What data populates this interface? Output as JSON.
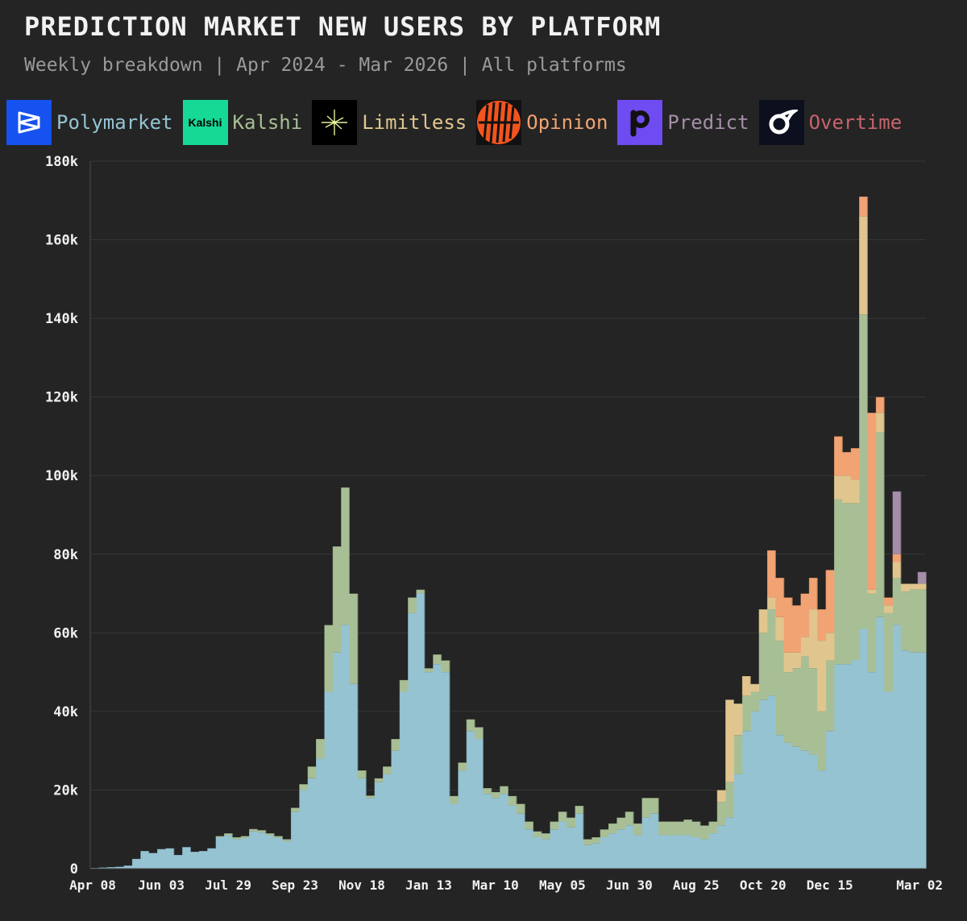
{
  "title": "PREDICTION MARKET NEW USERS BY PLATFORM",
  "subtitle": "Weekly breakdown | Apr 2024 - Mar 2026 | All platforms",
  "legend": [
    {
      "name": "Polymarket",
      "color": "#95c3d2",
      "icon": "polymarket-logo-icon",
      "icon_bg": "#1652f0"
    },
    {
      "name": "Kalshi",
      "color": "#a8bf96",
      "icon": "kalshi-logo-icon",
      "icon_bg": "#16d996",
      "icon_text": "Kalshi"
    },
    {
      "name": "Limitless",
      "color": "#e0c68e",
      "icon": "limitless-logo-icon",
      "icon_bg": "#000000"
    },
    {
      "name": "Opinion",
      "color": "#f2a373",
      "icon": "opinion-logo-icon",
      "icon_bg": "#f2541d"
    },
    {
      "name": "Predict",
      "color": "#a58ea8",
      "icon": "predict-logo-icon",
      "icon_bg": "#6f4bf2"
    },
    {
      "name": "Overtime",
      "color": "#c8636c",
      "icon": "overtime-logo-icon",
      "icon_bg": "#0b0f1e"
    }
  ],
  "chart_data": {
    "type": "area",
    "stacked": true,
    "step": true,
    "title": "PREDICTION MARKET NEW USERS BY PLATFORM",
    "xlabel": "",
    "ylabel": "",
    "ylim": [
      0,
      180000
    ],
    "grid": true,
    "legend_position": "top",
    "yticks": [
      0,
      20000,
      40000,
      60000,
      80000,
      100000,
      120000,
      140000,
      160000,
      180000
    ],
    "ytick_labels": [
      "0",
      "20k",
      "40k",
      "60k",
      "80k",
      "100k",
      "120k",
      "140k",
      "160k",
      "180k"
    ],
    "xtick_labels": [
      "Apr 08",
      "Jun 03",
      "Jul 29",
      "Sep 23",
      "Nov 18",
      "Jan 13",
      "Mar 10",
      "May 05",
      "Jun 30",
      "Aug 25",
      "Oct 20",
      "Dec 15",
      "Mar 02"
    ],
    "xtick_index": [
      0,
      8,
      16,
      24,
      32,
      40,
      48,
      56,
      64,
      72,
      80,
      88,
      99
    ],
    "series": [
      {
        "name": "Polymarket",
        "color": "#95c3d2",
        "values": [
          200,
          300,
          400,
          500,
          800,
          2500,
          4500,
          4000,
          5000,
          5200,
          3500,
          5500,
          4300,
          4500,
          5200,
          8000,
          8500,
          7500,
          7800,
          9500,
          9200,
          8500,
          7800,
          7000,
          14500,
          20000,
          23000,
          28000,
          45000,
          55000,
          62000,
          47000,
          23000,
          18000,
          22000,
          24000,
          30000,
          45000,
          65000,
          70000,
          50000,
          52000,
          50000,
          16500,
          25000,
          35000,
          33000,
          19000,
          18000,
          19000,
          16000,
          14000,
          10000,
          8000,
          7500,
          10000,
          12000,
          10500,
          14000,
          6000,
          6500,
          8000,
          9000,
          10000,
          11000,
          8500,
          13000,
          14000,
          8500,
          8500,
          8500,
          8500,
          8000,
          7500,
          9000,
          11000,
          13000,
          24000,
          35000,
          40000,
          43000,
          44000,
          34000,
          32000,
          31000,
          30000,
          29000,
          25000,
          35000,
          52000,
          52000,
          53000,
          61000,
          50000,
          64000,
          45000,
          62000,
          55500,
          55000,
          55000
        ]
      },
      {
        "name": "Kalshi",
        "color": "#a8bf96",
        "values": [
          0,
          0,
          0,
          0,
          0,
          0,
          0,
          0,
          0,
          0,
          0,
          0,
          0,
          0,
          0,
          300,
          500,
          500,
          500,
          600,
          600,
          500,
          500,
          500,
          1000,
          1500,
          3000,
          5000,
          17000,
          27000,
          35000,
          23000,
          2000,
          600,
          1000,
          2000,
          3000,
          3000,
          4000,
          1000,
          1000,
          2500,
          3000,
          2000,
          2000,
          3000,
          3000,
          1500,
          1500,
          2000,
          2500,
          2500,
          2000,
          1500,
          1500,
          2000,
          2500,
          2500,
          2000,
          1500,
          1500,
          2000,
          2500,
          3000,
          3500,
          3000,
          5000,
          4000,
          3500,
          3500,
          3500,
          4000,
          4000,
          3500,
          3000,
          6000,
          9000,
          10000,
          9000,
          5000,
          17000,
          22000,
          24000,
          18000,
          20000,
          24000,
          22000,
          15000,
          18000,
          42000,
          41000,
          40000,
          80000,
          20000,
          47000,
          20000,
          12000,
          15000,
          16000,
          16000
        ]
      },
      {
        "name": "Limitless",
        "color": "#e0c68e",
        "values": [
          0,
          0,
          0,
          0,
          0,
          0,
          0,
          0,
          0,
          0,
          0,
          0,
          0,
          0,
          0,
          0,
          0,
          0,
          0,
          0,
          0,
          0,
          0,
          0,
          0,
          0,
          0,
          0,
          0,
          0,
          0,
          0,
          0,
          0,
          0,
          0,
          0,
          0,
          0,
          0,
          0,
          0,
          0,
          0,
          0,
          0,
          0,
          0,
          0,
          0,
          0,
          0,
          0,
          0,
          0,
          0,
          0,
          0,
          0,
          0,
          0,
          0,
          0,
          0,
          0,
          0,
          0,
          0,
          0,
          0,
          0,
          0,
          0,
          0,
          0,
          3000,
          21000,
          8000,
          5000,
          2000,
          6000,
          3000,
          6000,
          5000,
          4000,
          5000,
          15000,
          18000,
          7000,
          6000,
          7000,
          6000,
          25000,
          1000,
          5000,
          2000,
          4000,
          2000,
          1500,
          1500
        ]
      },
      {
        "name": "Opinion",
        "color": "#f2a373",
        "values": [
          0,
          0,
          0,
          0,
          0,
          0,
          0,
          0,
          0,
          0,
          0,
          0,
          0,
          0,
          0,
          0,
          0,
          0,
          0,
          0,
          0,
          0,
          0,
          0,
          0,
          0,
          0,
          0,
          0,
          0,
          0,
          0,
          0,
          0,
          0,
          0,
          0,
          0,
          0,
          0,
          0,
          0,
          0,
          0,
          0,
          0,
          0,
          0,
          0,
          0,
          0,
          0,
          0,
          0,
          0,
          0,
          0,
          0,
          0,
          0,
          0,
          0,
          0,
          0,
          0,
          0,
          0,
          0,
          0,
          0,
          0,
          0,
          0,
          0,
          0,
          0,
          0,
          0,
          0,
          0,
          0,
          12000,
          10000,
          14000,
          12000,
          11000,
          8000,
          8000,
          16000,
          10000,
          6000,
          8000,
          5000,
          45000,
          4000,
          2000,
          2000,
          0,
          0,
          0
        ]
      },
      {
        "name": "Predict",
        "color": "#a58ea8",
        "values": [
          0,
          0,
          0,
          0,
          0,
          0,
          0,
          0,
          0,
          0,
          0,
          0,
          0,
          0,
          0,
          0,
          0,
          0,
          0,
          0,
          0,
          0,
          0,
          0,
          0,
          0,
          0,
          0,
          0,
          0,
          0,
          0,
          0,
          0,
          0,
          0,
          0,
          0,
          0,
          0,
          0,
          0,
          0,
          0,
          0,
          0,
          0,
          0,
          0,
          0,
          0,
          0,
          0,
          0,
          0,
          0,
          0,
          0,
          0,
          0,
          0,
          0,
          0,
          0,
          0,
          0,
          0,
          0,
          0,
          0,
          0,
          0,
          0,
          0,
          0,
          0,
          0,
          0,
          0,
          0,
          0,
          0,
          0,
          0,
          0,
          0,
          0,
          0,
          0,
          0,
          0,
          0,
          0,
          0,
          0,
          0,
          16000,
          0,
          0,
          3000
        ]
      },
      {
        "name": "Overtime",
        "color": "#c8636c",
        "values": [
          0,
          0,
          0,
          0,
          0,
          0,
          0,
          0,
          0,
          0,
          0,
          0,
          0,
          0,
          0,
          0,
          0,
          0,
          0,
          0,
          0,
          0,
          0,
          0,
          0,
          0,
          0,
          0,
          0,
          0,
          0,
          0,
          0,
          0,
          0,
          0,
          0,
          0,
          0,
          0,
          0,
          0,
          0,
          0,
          0,
          0,
          0,
          0,
          0,
          0,
          0,
          0,
          0,
          0,
          0,
          0,
          0,
          0,
          0,
          0,
          0,
          0,
          0,
          0,
          0,
          0,
          0,
          0,
          0,
          0,
          0,
          0,
          0,
          0,
          0,
          0,
          0,
          0,
          0,
          0,
          0,
          0,
          0,
          0,
          0,
          0,
          0,
          0,
          0,
          0,
          0,
          0,
          0,
          0,
          0,
          0,
          0,
          0,
          0,
          0
        ]
      }
    ]
  }
}
